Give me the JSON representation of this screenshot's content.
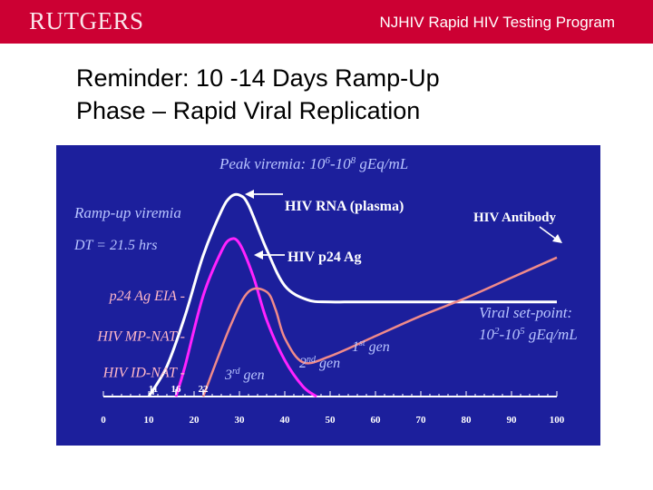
{
  "header": {
    "logo": "RUTGERS",
    "program": "NJHIV Rapid HIV Testing Program"
  },
  "slide": {
    "title_line1": "Reminder: 10 -14 Days Ramp-Up",
    "title_line2": "Phase – Rapid Viral Replication"
  },
  "colors": {
    "header": "#cc0033",
    "chart_bg": "#1c1f9c",
    "rna": "#ffffff",
    "p24": "#ff22ff",
    "antibody": "#f08a8a",
    "assay_text": "#ffb8c8",
    "note_text": "#b8c4ff"
  },
  "chart_data": {
    "type": "line",
    "xlabel": "",
    "ylabel": "",
    "x_ticks": [
      0,
      10,
      20,
      30,
      40,
      50,
      60,
      70,
      80,
      90,
      100
    ],
    "xlim": [
      0,
      100
    ],
    "series": [
      {
        "name": "HIV RNA (plasma)",
        "x": [
          10,
          14,
          18,
          22,
          26,
          28,
          30,
          32,
          36,
          40,
          45,
          50,
          60,
          100
        ],
        "y": [
          0.0,
          0.15,
          0.4,
          0.7,
          0.92,
          0.99,
          1.0,
          0.95,
          0.73,
          0.55,
          0.48,
          0.47,
          0.47,
          0.47
        ]
      },
      {
        "name": "HIV p24 Ag",
        "x": [
          16,
          18,
          22,
          26,
          28,
          30,
          33,
          36,
          40,
          44,
          47
        ],
        "y": [
          0.0,
          0.15,
          0.5,
          0.72,
          0.78,
          0.76,
          0.6,
          0.38,
          0.18,
          0.05,
          0.0
        ]
      },
      {
        "name": "HIV Antibody",
        "x": [
          22,
          28,
          32,
          36,
          38,
          40,
          44,
          50,
          60,
          70,
          80,
          90,
          100
        ],
        "y": [
          0.0,
          0.35,
          0.52,
          0.52,
          0.43,
          0.29,
          0.17,
          0.2,
          0.3,
          0.4,
          0.49,
          0.59,
          0.69
        ]
      }
    ],
    "day_markers": [
      {
        "label": "11",
        "x": 11
      },
      {
        "label": "16",
        "x": 16
      },
      {
        "label": "22",
        "x": 22
      }
    ],
    "assay_labels": [
      {
        "text": "p24 Ag EIA -",
        "y": 0.5
      },
      {
        "text": "HIV MP-NAT -",
        "y": 0.3
      },
      {
        "text": "HIV ID-NAT -",
        "y": 0.12
      }
    ],
    "annotations": {
      "peak_prefix": "Peak viremia: 10",
      "peak_exp1": "6",
      "peak_mid": "-10",
      "peak_exp2": "8",
      "peak_unit": " gEq/mL",
      "rampup": "Ramp-up viremia",
      "dt": "DT = 21.5 hrs",
      "setpoint_line1": "Viral set-point:",
      "setpoint_base1": "10",
      "setpoint_exp1": "2",
      "setpoint_mid": "-10",
      "setpoint_exp2": "5",
      "setpoint_unit": " gEq/mL",
      "gen1_base": "1",
      "gen1_sup": "st",
      "gen1_word": " gen",
      "gen2_base": "2",
      "gen2_sup": "nd",
      "gen2_word": " gen",
      "gen3_base": "3",
      "gen3_sup": "rd",
      "gen3_word": " gen"
    }
  }
}
